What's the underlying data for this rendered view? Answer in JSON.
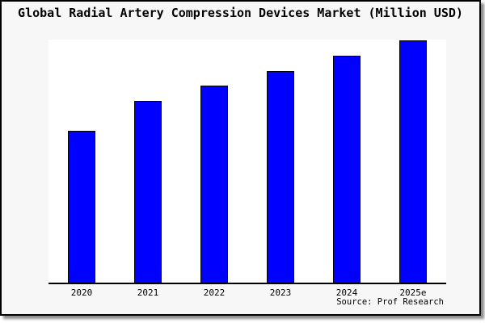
{
  "window": {
    "background_color": "#ffffff",
    "frame_background_color": "#f7f7f7",
    "frame_border_color": "#000000",
    "plot_background_color": "#ffffff"
  },
  "chart_data": {
    "type": "bar",
    "title": "Global Radial Artery Compression Devices Market (Million USD)",
    "categories": [
      "2020",
      "2021",
      "2022",
      "2023",
      "2024",
      "2025e"
    ],
    "values": [
      62.7,
      75.0,
      81.3,
      87.3,
      93.7,
      100.0
    ],
    "y_axis": "unlabeled (no ticks or values shown); values are relative bar heights, tallest bar = 100",
    "ylim": [
      0,
      100.3
    ],
    "xlabel": "",
    "ylabel": "",
    "grid": false,
    "legend": false,
    "bar_color": "#0000FE",
    "bar_edge_color": "#000000",
    "source_label": "Source: Prof Research"
  }
}
